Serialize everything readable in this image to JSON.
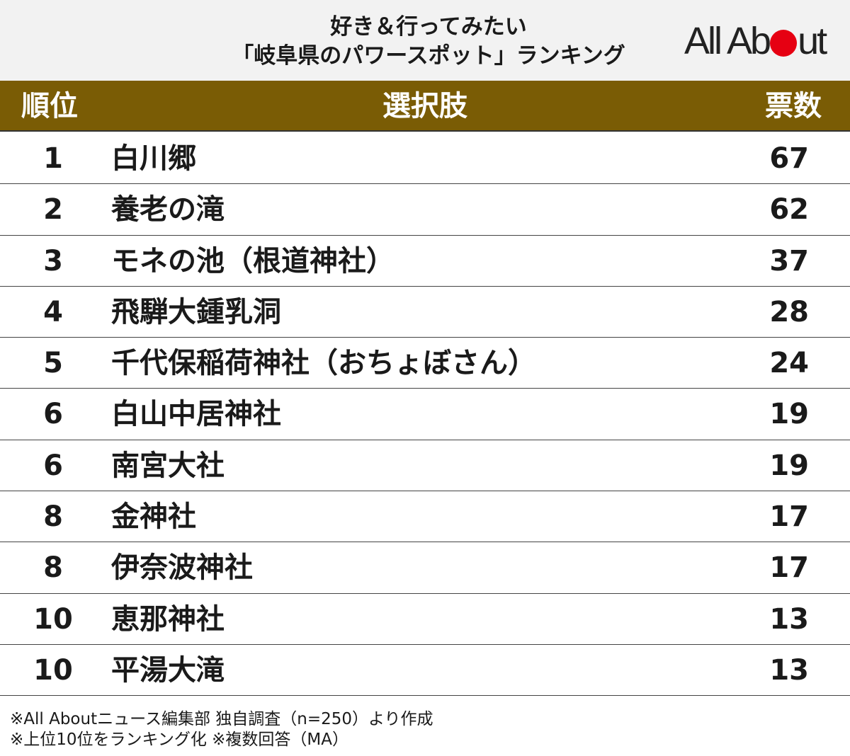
{
  "title": {
    "line1": "好き＆行ってみたい",
    "line2": "「岐阜県のパワースポット」ランキング"
  },
  "logo": {
    "text_before": "All Ab",
    "text_after": "ut",
    "dot_color": "#e60012"
  },
  "colors": {
    "header_band": "#7a5c05",
    "header_bg": "#f2f2f2"
  },
  "headers": {
    "rank": "順位",
    "name": "選択肢",
    "votes": "票数"
  },
  "rows": [
    {
      "rank": "1",
      "name": "白川郷",
      "votes": "67"
    },
    {
      "rank": "2",
      "name": "養老の滝",
      "votes": "62"
    },
    {
      "rank": "3",
      "name": "モネの池（根道神社）",
      "votes": "37"
    },
    {
      "rank": "4",
      "name": "飛騨大鍾乳洞",
      "votes": "28"
    },
    {
      "rank": "5",
      "name": "千代保稲荷神社（おちょぼさん）",
      "votes": "24"
    },
    {
      "rank": "6",
      "name": "白山中居神社",
      "votes": "19"
    },
    {
      "rank": "6",
      "name": "南宮大社",
      "votes": "19"
    },
    {
      "rank": "8",
      "name": "金神社",
      "votes": "17"
    },
    {
      "rank": "8",
      "name": "伊奈波神社",
      "votes": "17"
    },
    {
      "rank": "10",
      "name": "恵那神社",
      "votes": "13"
    },
    {
      "rank": "10",
      "name": "平湯大滝",
      "votes": "13"
    }
  ],
  "notes": {
    "line1": "※All Aboutニュース編集部 独自調査（n=250）より作成",
    "line2": "※上位10位をランキング化 ※複数回答（MA）"
  },
  "chart_data": {
    "type": "table",
    "title": "好き＆行ってみたい「岐阜県のパワースポット」ランキング",
    "columns": [
      "順位",
      "選択肢",
      "票数"
    ],
    "rows": [
      [
        "1",
        "白川郷",
        67
      ],
      [
        "2",
        "養老の滝",
        62
      ],
      [
        "3",
        "モネの池（根道神社）",
        37
      ],
      [
        "4",
        "飛騨大鍾乳洞",
        28
      ],
      [
        "5",
        "千代保稲荷神社（おちょぼさん）",
        24
      ],
      [
        "6",
        "白山中居神社",
        19
      ],
      [
        "6",
        "南宮大社",
        19
      ],
      [
        "8",
        "金神社",
        17
      ],
      [
        "8",
        "伊奈波神社",
        17
      ],
      [
        "10",
        "恵那神社",
        13
      ],
      [
        "10",
        "平湯大滝",
        13
      ]
    ]
  }
}
